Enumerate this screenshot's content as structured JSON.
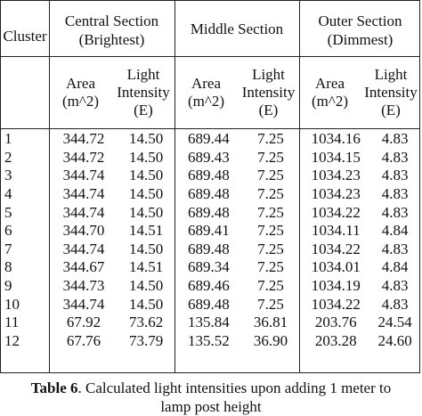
{
  "headers": {
    "cluster": "Cluster",
    "central": [
      "Central Section",
      "(Brightest)"
    ],
    "middle": "Middle Section",
    "outer": [
      "Outer Section",
      "(Dimmest)"
    ],
    "area": [
      "Area",
      "(m^2)"
    ],
    "intensity": [
      "Light",
      "Intensity",
      "(E)"
    ]
  },
  "rows": [
    [
      "1",
      "344.72",
      "14.50",
      "689.44",
      "7.25",
      "1034.16",
      "4.83"
    ],
    [
      "2",
      "344.72",
      "14.50",
      "689.43",
      "7.25",
      "1034.15",
      "4.83"
    ],
    [
      "3",
      "344.74",
      "14.50",
      "689.48",
      "7.25",
      "1034.23",
      "4.83"
    ],
    [
      "4",
      "344.74",
      "14.50",
      "689.48",
      "7.25",
      "1034.23",
      "4.83"
    ],
    [
      "5",
      "344.74",
      "14.50",
      "689.48",
      "7.25",
      "1034.22",
      "4.83"
    ],
    [
      "6",
      "344.70",
      "14.51",
      "689.41",
      "7.25",
      "1034.11",
      "4.84"
    ],
    [
      "7",
      "344.74",
      "14.50",
      "689.48",
      "7.25",
      "1034.22",
      "4.83"
    ],
    [
      "8",
      "344.67",
      "14.51",
      "689.34",
      "7.25",
      "1034.01",
      "4.84"
    ],
    [
      "9",
      "344.73",
      "14.50",
      "689.46",
      "7.25",
      "1034.19",
      "4.83"
    ],
    [
      "10",
      "344.74",
      "14.50",
      "689.48",
      "7.25",
      "1034.22",
      "4.83"
    ],
    [
      "11",
      "67.92",
      "73.62",
      "135.84",
      "36.81",
      "203.76",
      "24.54"
    ],
    [
      "12",
      "67.76",
      "73.79",
      "135.52",
      "36.90",
      "203.28",
      "24.60"
    ]
  ],
  "caption": {
    "label": "Table 6",
    "text": ". Calculated light intensities upon adding 1 meter to",
    "line2": "lamp post height"
  }
}
